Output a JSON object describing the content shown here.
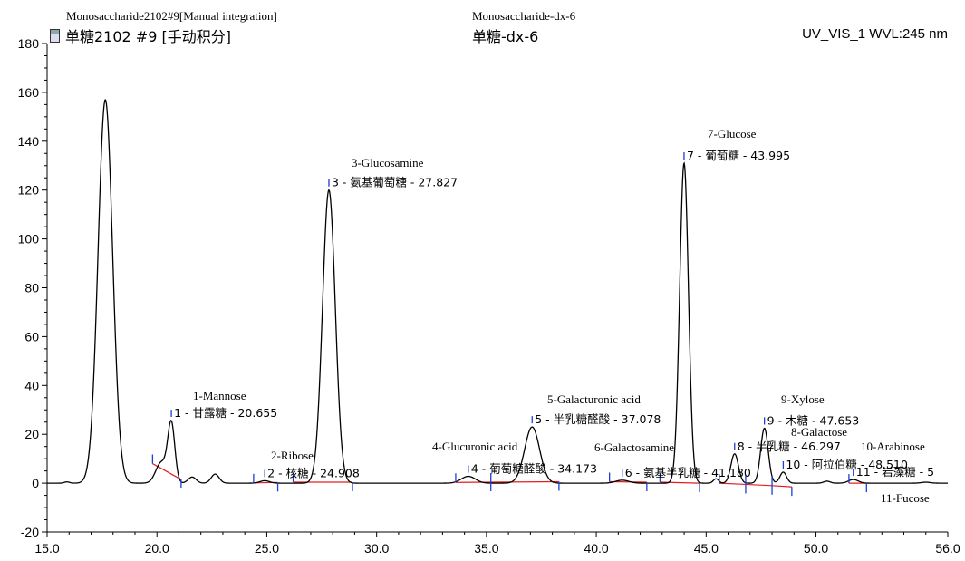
{
  "header": {
    "left_en": "Monosaccharide2102#9[Manual integration]",
    "left_cn": "单糖2102 #9 [手动积分]",
    "left_icon": "document-icon",
    "mid_en": "Monosaccharide-dx-6",
    "mid_cn": "单糖-dx-6",
    "right": "UV_VIS_1 WVL:245 nm"
  },
  "chart_data": {
    "type": "line",
    "xlim": [
      15.0,
      56.0
    ],
    "ylim": [
      -20,
      180
    ],
    "x_ticks": [
      "15.0",
      "20.0",
      "25.0",
      "30.0",
      "35.0",
      "40.0",
      "45.0",
      "50.0",
      "56.0"
    ],
    "x_tick_values": [
      15,
      20,
      25,
      30,
      35,
      40,
      45,
      50,
      56
    ],
    "y_ticks": [
      "-20",
      "0",
      "20",
      "40",
      "60",
      "80",
      "100",
      "120",
      "140",
      "160",
      "180"
    ],
    "y_tick_values": [
      -20,
      0,
      20,
      40,
      60,
      80,
      100,
      120,
      140,
      160,
      180
    ],
    "colors": {
      "trace": "#000000",
      "baseline": "#e02020",
      "marker": "#1a3fd6",
      "axis": "#000000"
    },
    "background_peaks": [
      {
        "rt": 15.9,
        "h": 0.5,
        "w": 0.12
      },
      {
        "rt": 17.65,
        "h": 157,
        "w": 0.33
      },
      {
        "rt": 20.2,
        "h": 8.5,
        "w": 0.25
      },
      {
        "rt": 21.6,
        "h": 2.5,
        "w": 0.18
      },
      {
        "rt": 22.65,
        "h": 3.7,
        "w": 0.18
      },
      {
        "rt": 45.45,
        "h": 1.8,
        "w": 0.12
      },
      {
        "rt": 50.5,
        "h": 0.8,
        "w": 0.15
      },
      {
        "rt": 55.0,
        "h": 0.4,
        "w": 0.2
      }
    ],
    "peaks": [
      {
        "num": 1,
        "rt": 20.655,
        "height": 24,
        "width": 0.16,
        "label": "1 - 甘露糖 - 20.655",
        "en": "1-Mannose",
        "start": 19.8,
        "end": 21.1,
        "start_y": 8,
        "end_y": 1.5
      },
      {
        "num": 2,
        "rt": 24.908,
        "height": 1.0,
        "width": 0.22,
        "label": "2 - 核糖 - 24.908",
        "en": "2-Ribose",
        "start": 24.4,
        "end": 25.5,
        "start_y": 0.1,
        "end_y": 0.3
      },
      {
        "num": 3,
        "rt": 27.827,
        "height": 120,
        "width": 0.29,
        "label": "3 - 氨基葡萄糖 - 27.827",
        "en": "3-Glucosamine",
        "start": 26.2,
        "end": 28.9,
        "start_y": 0.4,
        "end_y": 0.4
      },
      {
        "num": 4,
        "rt": 34.173,
        "height": 2.8,
        "width": 0.32,
        "label": "4 - 葡萄糖醛酸 - 34.173",
        "en": "4-Glucuronic acid",
        "start": 33.6,
        "end": 35.2,
        "start_y": 0.3,
        "end_y": 0.4
      },
      {
        "num": 5,
        "rt": 37.078,
        "height": 23,
        "width": 0.34,
        "label": "5 - 半乳糖醛酸 - 37.078",
        "en": "5-Galacturonic acid",
        "start": 35.2,
        "end": 38.3,
        "start_y": 0.4,
        "end_y": 0.6
      },
      {
        "num": 6,
        "rt": 41.18,
        "height": 1.2,
        "width": 0.3,
        "label": "6 - 氨基半乳糖 - 41.180",
        "en": "6-Galactosamine",
        "start": 40.6,
        "end": 42.3,
        "start_y": 0.6,
        "end_y": 0.4
      },
      {
        "num": 7,
        "rt": 43.995,
        "height": 131,
        "width": 0.2,
        "label": "7 - 葡萄糖 - 43.995",
        "en": "7-Glucose",
        "start": 42.9,
        "end": 44.7,
        "start_y": 0.4,
        "end_y": 0.0
      },
      {
        "num": 8,
        "rt": 46.297,
        "height": 12,
        "width": 0.17,
        "label": "8 - 半乳糖 - 46.297",
        "en": "8-Galactose",
        "start": 45.6,
        "end": 46.8,
        "start_y": 0.0,
        "end_y": -0.5
      },
      {
        "num": 9,
        "rt": 47.653,
        "height": 22.5,
        "width": 0.17,
        "label": "9 - 木糖 - 47.653",
        "en": "9-Xylose",
        "start": 46.8,
        "end": 48.0,
        "start_y": -0.5,
        "end_y": -1.0
      },
      {
        "num": 10,
        "rt": 48.51,
        "height": 4.5,
        "width": 0.15,
        "label": "10 - 阿拉伯糖 - 48.510",
        "en": "10-Arabinose",
        "start": 48.0,
        "end": 48.9,
        "start_y": -1.0,
        "end_y": -1.5
      },
      {
        "num": 11,
        "rt": 51.7,
        "height": 1.5,
        "width": 0.22,
        "label": "11 - 岩藻糖 - 5",
        "en": "11-Fucose",
        "start": 51.5,
        "end": 52.3,
        "start_y": 0.0,
        "end_y": 0.0
      }
    ]
  }
}
